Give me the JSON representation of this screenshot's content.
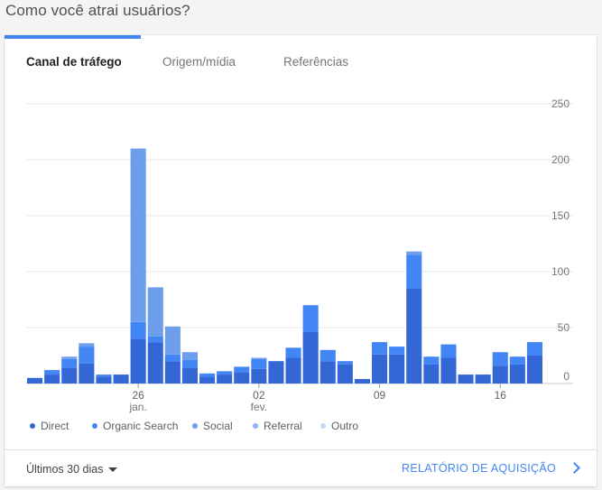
{
  "page": {
    "title": "Como você atrai usuários?"
  },
  "tabs": [
    {
      "label": "Canal de tráfego",
      "active": true
    },
    {
      "label": "Origem/mídia",
      "active": false
    },
    {
      "label": "Referências",
      "active": false
    }
  ],
  "footer": {
    "range_label": "Últimos 30 dias",
    "report_link": "RELATÓRIO DE AQUISIÇÃO"
  },
  "colors": {
    "accent": "#4285f4",
    "direct": "#3367d6",
    "organic_search": "#4285f4",
    "social": "#6d9eeb",
    "referral": "#8ab4f8",
    "outro": "#c6dafc"
  },
  "chart_data": {
    "type": "bar",
    "stacked": true,
    "ylim": [
      0,
      250
    ],
    "y_ticks": [
      250,
      200,
      150,
      100,
      50,
      0
    ],
    "x_tick_labels": [
      {
        "index": 6,
        "label": "26",
        "sublabel": "jan."
      },
      {
        "index": 13,
        "label": "02",
        "sublabel": "fev."
      },
      {
        "index": 20,
        "label": "09",
        "sublabel": ""
      },
      {
        "index": 27,
        "label": "16",
        "sublabel": ""
      }
    ],
    "legend_position": "bottom-left",
    "series": [
      {
        "name": "Direct",
        "color": "#3367d6",
        "values": [
          5,
          8,
          14,
          18,
          6,
          8,
          40,
          37,
          20,
          14,
          6,
          8,
          10,
          13,
          20,
          23,
          46,
          20,
          17,
          4,
          26,
          26,
          85,
          17,
          23,
          8,
          8,
          16,
          17,
          25
        ]
      },
      {
        "name": "Organic Search",
        "color": "#4285f4",
        "values": [
          0,
          4,
          8,
          15,
          2,
          0,
          15,
          5,
          6,
          7,
          3,
          3,
          5,
          9,
          0,
          9,
          24,
          10,
          3,
          0,
          11,
          7,
          30,
          7,
          12,
          0,
          0,
          12,
          7,
          12
        ]
      },
      {
        "name": "Social",
        "color": "#6d9eeb",
        "values": [
          0,
          0,
          2,
          3,
          0,
          0,
          155,
          44,
          25,
          7,
          0,
          0,
          0,
          1,
          0,
          0,
          0,
          0,
          0,
          0,
          0,
          0,
          3,
          0,
          0,
          0,
          0,
          0,
          0,
          0
        ]
      },
      {
        "name": "Referral",
        "color": "#8ab4f8",
        "values": [
          0,
          0,
          0,
          0,
          0,
          0,
          0,
          0,
          0,
          0,
          0,
          0,
          0,
          0,
          0,
          0,
          0,
          0,
          0,
          0,
          0,
          0,
          0,
          0,
          0,
          0,
          0,
          0,
          0,
          0
        ]
      },
      {
        "name": "Outro",
        "color": "#c6dafc",
        "values": [
          0,
          0,
          0,
          0,
          0,
          0,
          0,
          0,
          0,
          0,
          0,
          0,
          0,
          0,
          0,
          0,
          0,
          0,
          0,
          0,
          0,
          0,
          0,
          0,
          0,
          0,
          0,
          0,
          0,
          0
        ]
      }
    ]
  }
}
